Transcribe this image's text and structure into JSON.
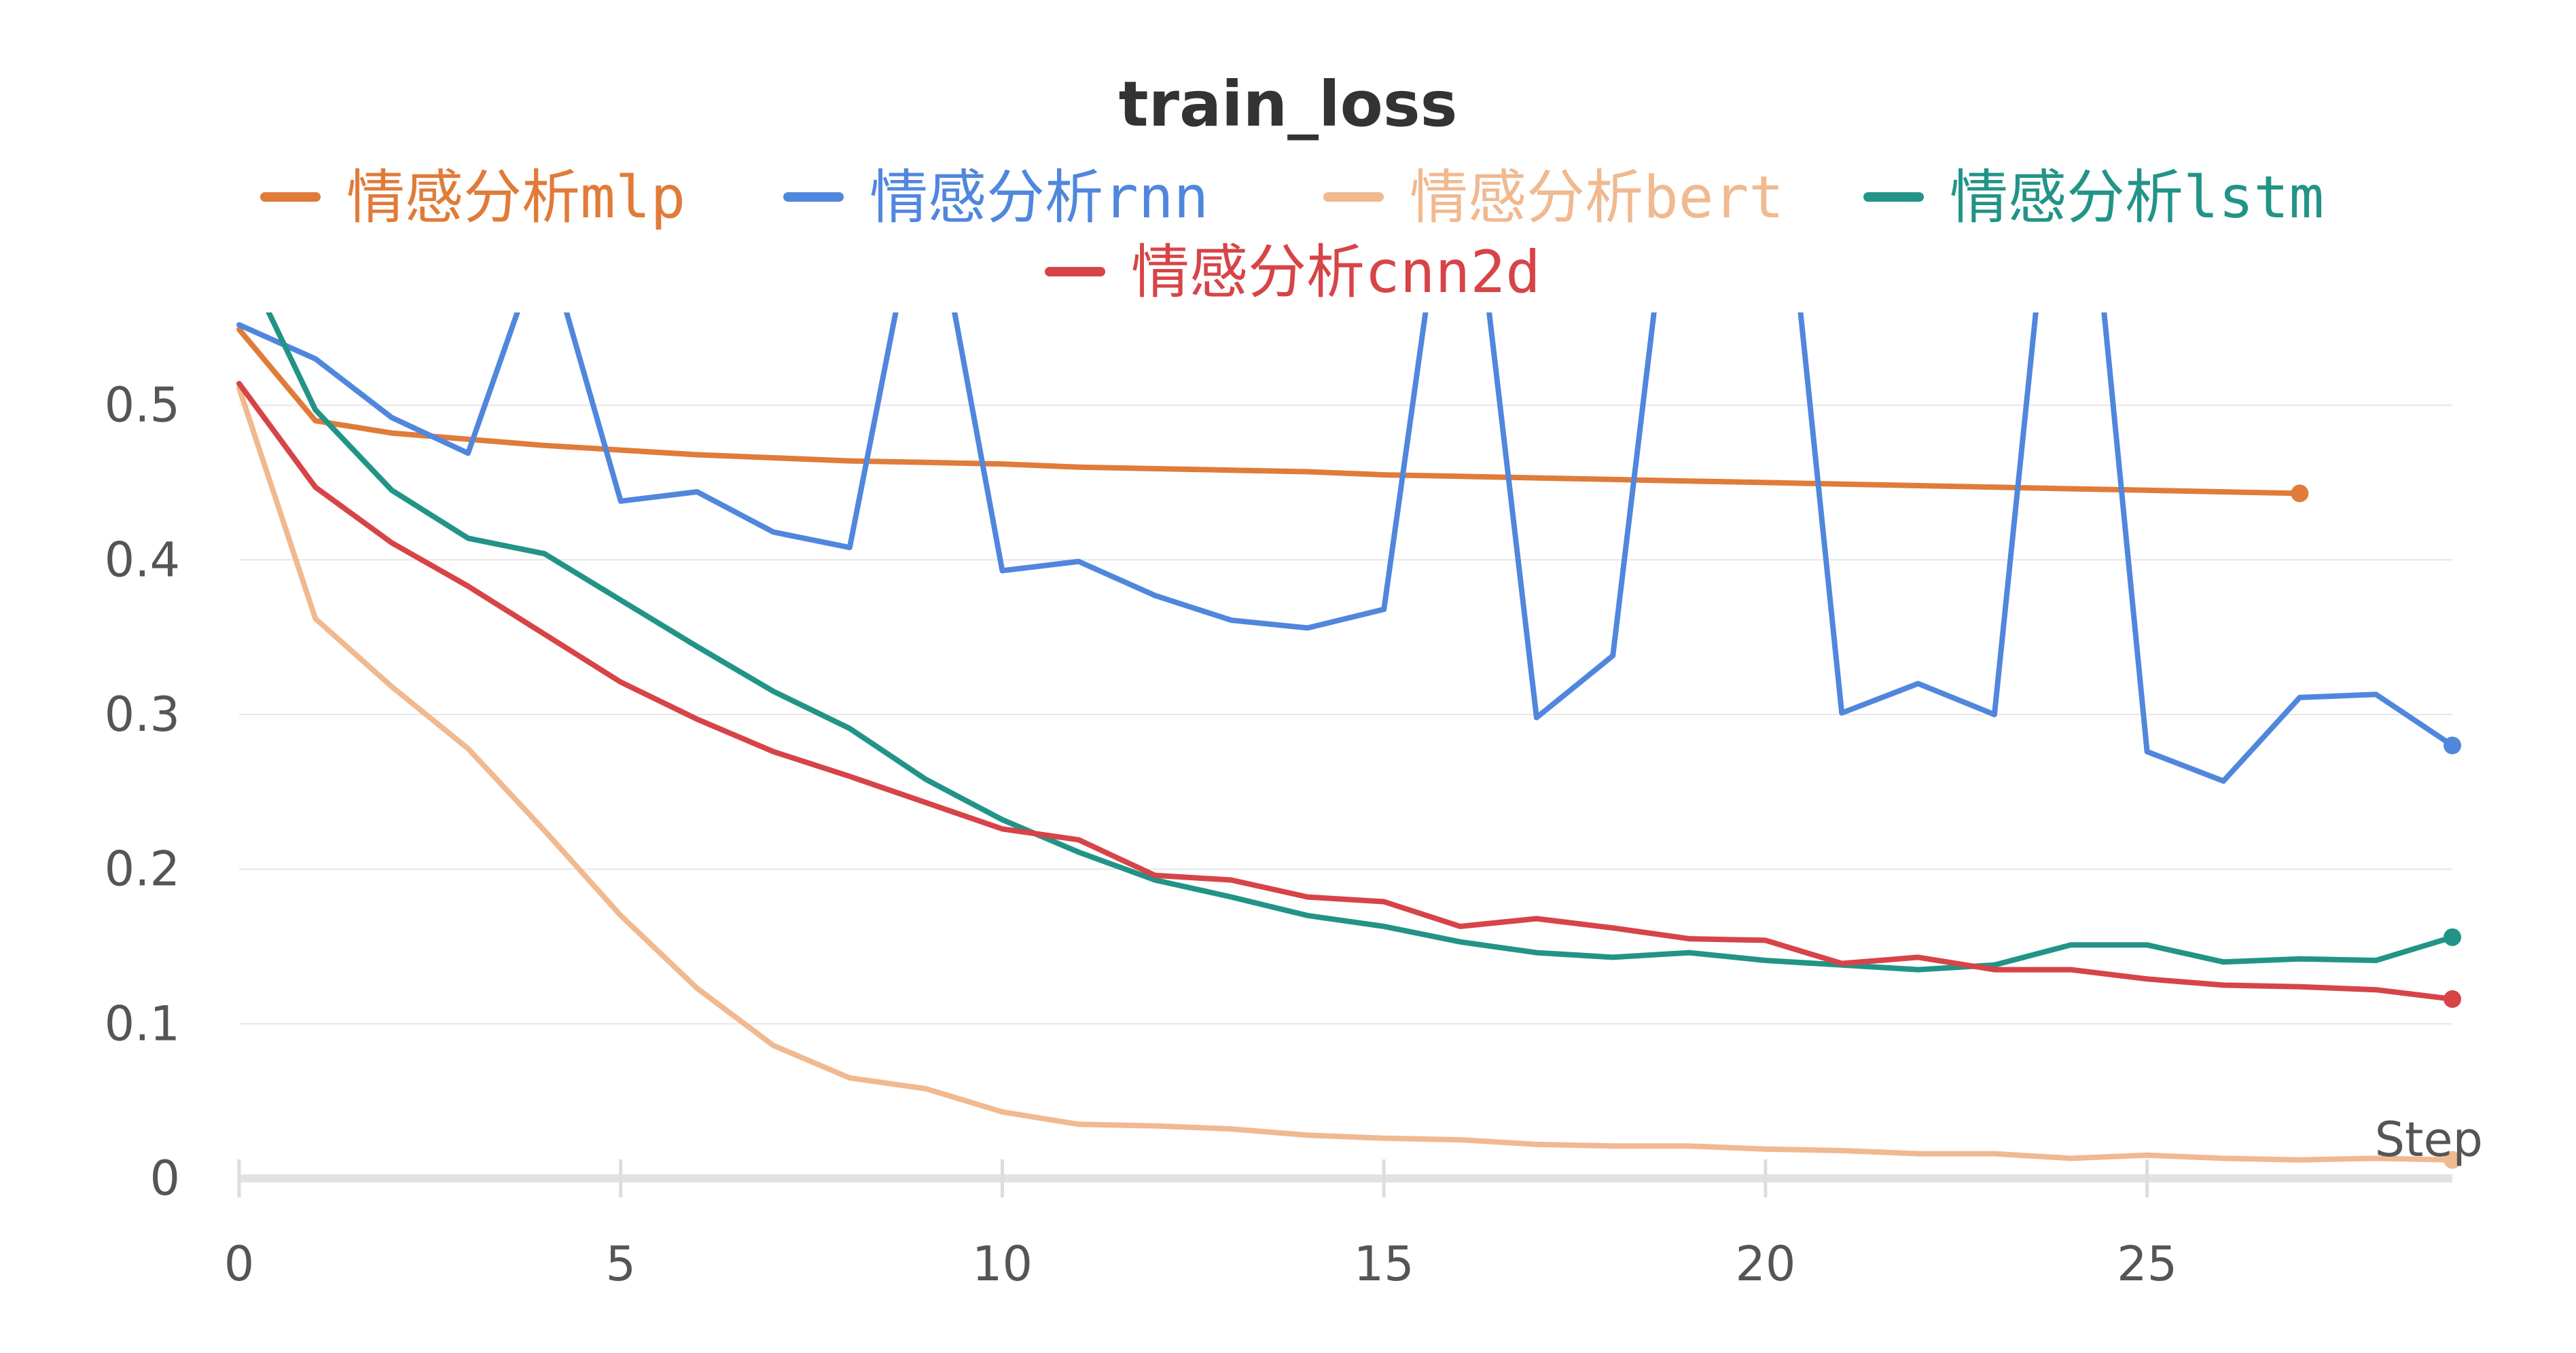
{
  "chart_data": {
    "type": "line",
    "title": "train_loss",
    "xlabel": "Step",
    "ylabel": "",
    "xlim": [
      0,
      29
    ],
    "ylim": [
      0,
      0.56
    ],
    "xticks": [
      0,
      5,
      10,
      15,
      20,
      25
    ],
    "yticks": [
      0,
      0.1,
      0.2,
      0.3,
      0.4,
      0.5
    ],
    "ytick_labels": [
      "0",
      "0.1",
      "0.2",
      "0.3",
      "0.4",
      "0.5"
    ],
    "grid": true,
    "legend_position": "top",
    "series": [
      {
        "name": "情感分析mlp",
        "color": "#E07B39",
        "x": [
          0,
          1,
          2,
          3,
          4,
          5,
          6,
          7,
          8,
          9,
          10,
          11,
          12,
          13,
          14,
          15,
          16,
          17,
          18,
          19,
          20,
          21,
          22,
          23,
          24,
          25,
          26,
          27
        ],
        "values": [
          0.549,
          0.49,
          0.482,
          0.478,
          0.474,
          0.471,
          0.468,
          0.466,
          0.464,
          0.463,
          0.462,
          0.46,
          0.459,
          0.458,
          0.457,
          0.455,
          0.454,
          0.453,
          0.452,
          0.451,
          0.45,
          0.449,
          0.448,
          0.447,
          0.446,
          0.445,
          0.444,
          0.443
        ]
      },
      {
        "name": "情感分析rnn",
        "color": "#5087DD",
        "x": [
          0,
          1,
          2,
          3,
          4,
          5,
          6,
          7,
          8,
          9,
          10,
          11,
          12,
          13,
          14,
          15,
          16,
          17,
          18,
          19,
          20,
          21,
          22,
          23,
          24,
          25,
          26,
          27,
          28,
          29
        ],
        "values": [
          0.552,
          0.53,
          0.492,
          0.469,
          0.61,
          0.438,
          0.444,
          0.418,
          0.408,
          0.66,
          0.393,
          0.399,
          0.377,
          0.361,
          0.356,
          0.368,
          0.72,
          0.298,
          0.338,
          0.75,
          0.78,
          0.301,
          0.32,
          0.3,
          0.78,
          0.276,
          0.257,
          0.311,
          0.313,
          0.28
        ]
      },
      {
        "name": "情感分析bert",
        "color": "#F0B990",
        "x": [
          0,
          1,
          2,
          3,
          4,
          5,
          6,
          7,
          8,
          9,
          10,
          11,
          12,
          13,
          14,
          15,
          16,
          17,
          18,
          19,
          20,
          21,
          22,
          23,
          24,
          25,
          26,
          27,
          28,
          29
        ],
        "values": [
          0.511,
          0.362,
          0.318,
          0.278,
          0.225,
          0.17,
          0.123,
          0.086,
          0.065,
          0.058,
          0.043,
          0.035,
          0.034,
          0.032,
          0.028,
          0.026,
          0.025,
          0.022,
          0.021,
          0.021,
          0.019,
          0.018,
          0.016,
          0.016,
          0.013,
          0.015,
          0.013,
          0.012,
          0.013,
          0.012
        ]
      },
      {
        "name": "情感分析lstm",
        "color": "#229487",
        "x": [
          0,
          1,
          2,
          3,
          4,
          5,
          6,
          7,
          8,
          9,
          10,
          11,
          12,
          13,
          14,
          15,
          16,
          17,
          18,
          19,
          20,
          21,
          22,
          23,
          24,
          25,
          26,
          27,
          28,
          29
        ],
        "values": [
          0.6,
          0.497,
          0.445,
          0.414,
          0.404,
          0.374,
          0.344,
          0.315,
          0.291,
          0.258,
          0.232,
          0.211,
          0.193,
          0.182,
          0.17,
          0.163,
          0.153,
          0.146,
          0.143,
          0.146,
          0.141,
          0.138,
          0.135,
          0.138,
          0.151,
          0.151,
          0.14,
          0.142,
          0.141,
          0.156
        ]
      },
      {
        "name": "情感分析cnn2d",
        "color": "#D74447",
        "x": [
          0,
          1,
          2,
          3,
          4,
          5,
          6,
          7,
          8,
          9,
          10,
          11,
          12,
          13,
          14,
          15,
          16,
          17,
          18,
          19,
          20,
          21,
          22,
          23,
          24,
          25,
          26,
          27,
          28,
          29
        ],
        "values": [
          0.514,
          0.447,
          0.411,
          0.383,
          0.352,
          0.321,
          0.297,
          0.276,
          0.26,
          0.243,
          0.226,
          0.219,
          0.196,
          0.193,
          0.182,
          0.179,
          0.163,
          0.168,
          0.162,
          0.155,
          0.154,
          0.139,
          0.143,
          0.135,
          0.135,
          0.129,
          0.125,
          0.124,
          0.122,
          0.116
        ]
      }
    ]
  }
}
